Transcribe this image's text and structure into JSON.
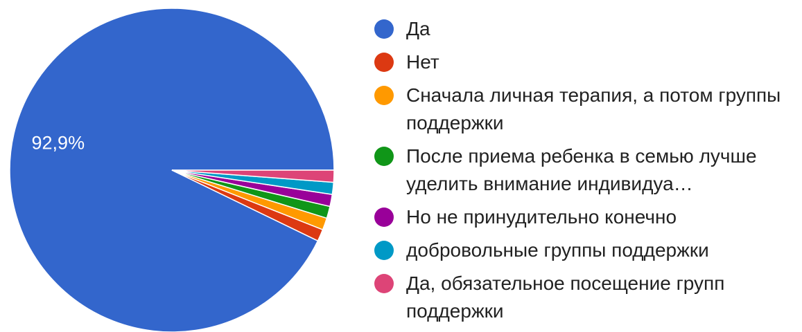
{
  "chart_data": {
    "type": "pie",
    "slices": [
      {
        "label": "Да",
        "value": 92.9,
        "color": "#3366cc",
        "display_label": "92,9%"
      },
      {
        "label": "Нет",
        "value": 1.2,
        "color": "#dc3912",
        "display_label": ""
      },
      {
        "label": "Сначала личная терапия, а потом группы поддержки",
        "value": 1.2,
        "color": "#ff9900",
        "display_label": ""
      },
      {
        "label": "После приема ребенка в семью лучше уделить внимание индивидуа…",
        "value": 1.2,
        "color": "#109618",
        "display_label": ""
      },
      {
        "label": "Но не принудительно конечно",
        "value": 1.2,
        "color": "#990099",
        "display_label": ""
      },
      {
        "label": "добровольные группы поддержки",
        "value": 1.2,
        "color": "#0099c6",
        "display_label": ""
      },
      {
        "label": "Да, обязательное посещение групп поддержки",
        "value": 1.2,
        "color": "#dd4477",
        "display_label": ""
      }
    ],
    "legend_position": "right",
    "start_direction": "east",
    "direction": "counterclockwise"
  }
}
